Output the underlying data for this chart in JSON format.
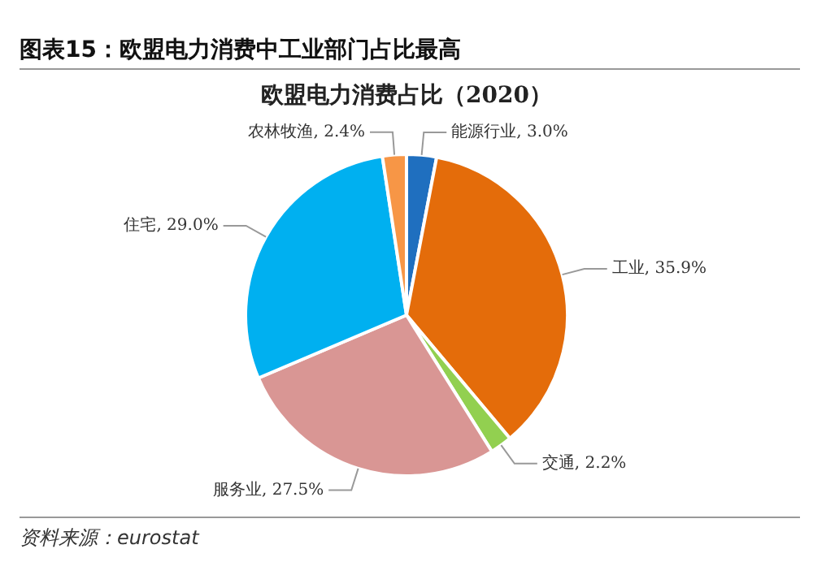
{
  "chart_data": {
    "type": "pie",
    "title": "欧盟电力消费占比（2020）",
    "subtitle": "图表15：欧盟电力消费中工业部门占比最高",
    "categories": [
      "能源行业",
      "工业",
      "交通",
      "服务业",
      "住宅",
      "农林牧渔"
    ],
    "values": [
      3.0,
      35.9,
      2.2,
      27.5,
      29.0,
      2.4
    ],
    "value_labels": [
      "3.0%",
      "35.9%",
      "2.2%",
      "27.5%",
      "29.0%",
      "2.4%"
    ],
    "colors": [
      "#1f6fbf",
      "#e46c0a",
      "#92d050",
      "#d99694",
      "#00b0f0",
      "#f79646"
    ],
    "legend": false,
    "annotations": [
      "资料来源：eurostat"
    ]
  }
}
